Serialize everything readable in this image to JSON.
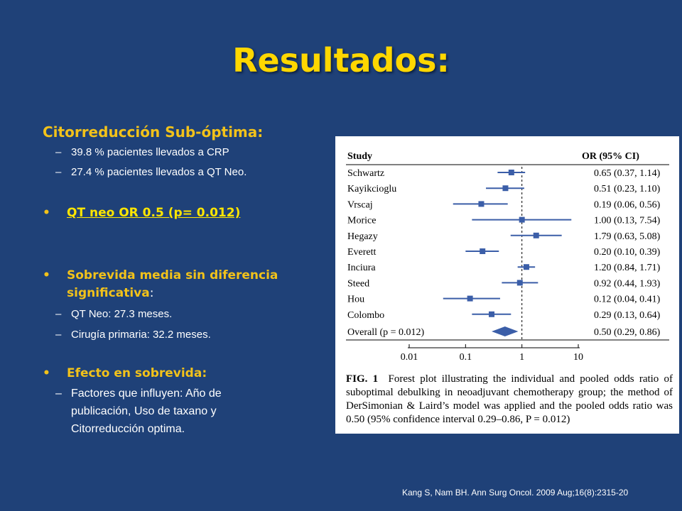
{
  "slide": {
    "title": "Resultados:",
    "heading": "Citorreducción Sub-óptima:",
    "sub1": "39.8 % pacientes llevados a CRP",
    "sub2": "27.4 % pacientes llevados a QT Neo.",
    "bullet1": "QT neo OR 0.5 (p= 0.012)",
    "bullet2_line1": "Sobrevida media sin diferencia",
    "bullet2_line2": "significativa",
    "bullet2_colon": ":",
    "sub3": "QT Neo: 27.3 meses.",
    "sub4": "Cirugía primaria: 32.2 meses.",
    "bullet3": "Efecto en sobrevida:",
    "sub5_line1": "Factores que influyen: Año de",
    "sub5_line2": "publicación, Uso de taxano y",
    "sub5_line3": "Citorreducción optima.",
    "dash": "–",
    "dot": "•",
    "citation": "Kang S, Nam BH. Ann Surg Oncol. 2009 Aug;16(8):2315-20"
  },
  "figure": {
    "caption_label": "FIG. 1",
    "caption_text": "Forest plot illustrating the individual and pooled odds ratio of suboptimal debulking in neoadjuvant chemotherapy group; the method of DerSimonian & Laird’s model was applied and the pooled odds ratio was 0.50 (95% confidence interval 0.29–0.86, P = 0.012)"
  },
  "chart_data": {
    "type": "forest",
    "col_study": "Study",
    "col_or": "OR (95% CI)",
    "x_scale": "log",
    "xlim": [
      0.01,
      10
    ],
    "x_ticks": [
      "0.01",
      "0.1",
      "1",
      "10"
    ],
    "reference_line": 1,
    "marker_color": "#3b5ea8",
    "studies": [
      {
        "name": "Schwartz",
        "or": 0.65,
        "lo": 0.37,
        "hi": 1.14,
        "label": "0.65 (0.37, 1.14)"
      },
      {
        "name": "Kayikcioglu",
        "or": 0.51,
        "lo": 0.23,
        "hi": 1.1,
        "label": "0.51 (0.23, 1.10)"
      },
      {
        "name": "Vrscaj",
        "or": 0.19,
        "lo": 0.06,
        "hi": 0.56,
        "label": "0.19 (0.06, 0.56)"
      },
      {
        "name": "Morice",
        "or": 1.0,
        "lo": 0.13,
        "hi": 7.54,
        "label": "1.00 (0.13, 7.54)"
      },
      {
        "name": "Hegazy",
        "or": 1.79,
        "lo": 0.63,
        "hi": 5.08,
        "label": "1.79 (0.63, 5.08)"
      },
      {
        "name": "Everett",
        "or": 0.2,
        "lo": 0.1,
        "hi": 0.39,
        "label": "0.20 (0.10, 0.39)"
      },
      {
        "name": "Inciura",
        "or": 1.2,
        "lo": 0.84,
        "hi": 1.71,
        "label": "1.20 (0.84, 1.71)"
      },
      {
        "name": "Steed",
        "or": 0.92,
        "lo": 0.44,
        "hi": 1.93,
        "label": "0.92 (0.44, 1.93)"
      },
      {
        "name": "Hou",
        "or": 0.12,
        "lo": 0.04,
        "hi": 0.41,
        "label": "0.12 (0.04, 0.41)"
      },
      {
        "name": "Colombo",
        "or": 0.29,
        "lo": 0.13,
        "hi": 0.64,
        "label": "0.29 (0.13, 0.64)"
      }
    ],
    "overall": {
      "name": "Overall (p = 0.012)",
      "or": 0.5,
      "lo": 0.29,
      "hi": 0.86,
      "label": "0.50 (0.29, 0.86)"
    }
  }
}
